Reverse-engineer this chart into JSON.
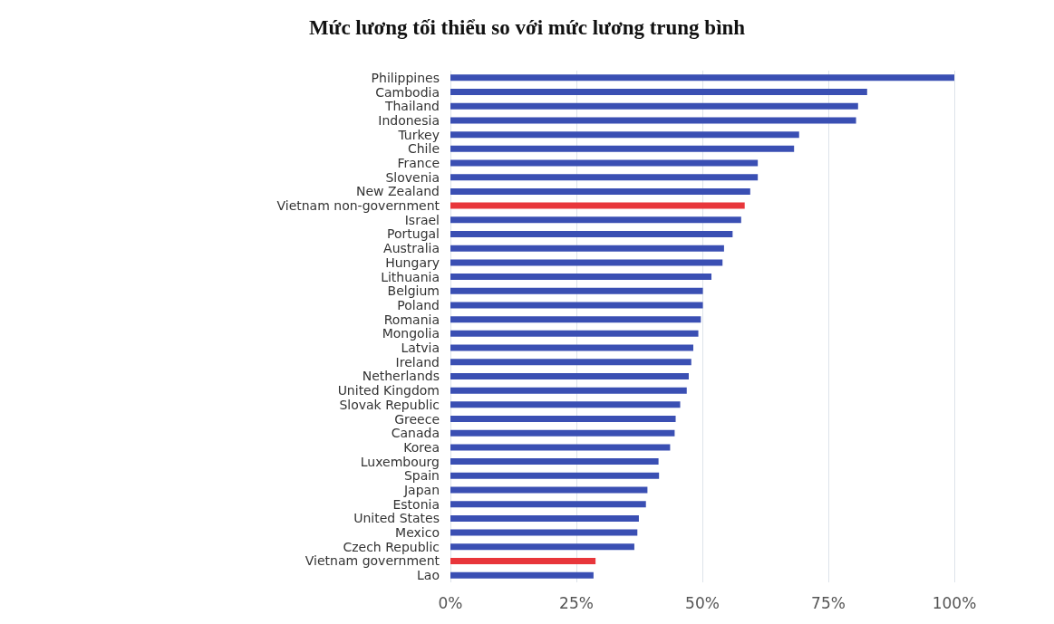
{
  "chart_data": {
    "type": "bar",
    "orientation": "horizontal",
    "title": "Mức lương tối thiểu so với mức lương trung bình",
    "categories": [
      "Philippines",
      "Cambodia",
      "Thailand",
      "Indonesia",
      "Turkey",
      "Chile",
      "France",
      "Slovenia",
      "New Zealand",
      "Vietnam non-government",
      "Israel",
      "Portugal",
      "Australia",
      "Hungary",
      "Lithuania",
      "Belgium",
      "Poland",
      "Romania",
      "Mongolia",
      "Latvia",
      "Ireland",
      "Netherlands",
      "United Kingdom",
      "Slovak Republic",
      "Greece",
      "Canada",
      "Korea",
      "Luxembourg",
      "Spain",
      "Japan",
      "Estonia",
      "United States",
      "Mexico",
      "Czech Republic",
      "Vietnam government",
      "Lao"
    ],
    "values": [
      100,
      82.7,
      80.9,
      80.5,
      69.2,
      68.2,
      61,
      61,
      59.5,
      58.4,
      57.7,
      56,
      54.3,
      54,
      51.8,
      50.1,
      50.1,
      49.7,
      49.2,
      48.2,
      47.8,
      47.3,
      46.9,
      45.6,
      44.7,
      44.5,
      43.6,
      41.3,
      41.4,
      39.1,
      38.8,
      37.4,
      37.1,
      36.5,
      28.8,
      28.4
    ],
    "colors": [
      "#3a4fb3",
      "#3a4fb3",
      "#3a4fb3",
      "#3a4fb3",
      "#3a4fb3",
      "#3a4fb3",
      "#3a4fb3",
      "#3a4fb3",
      "#3a4fb3",
      "#e8363b",
      "#3a4fb3",
      "#3a4fb3",
      "#3a4fb3",
      "#3a4fb3",
      "#3a4fb3",
      "#3a4fb3",
      "#3a4fb3",
      "#3a4fb3",
      "#3a4fb3",
      "#3a4fb3",
      "#3a4fb3",
      "#3a4fb3",
      "#3a4fb3",
      "#3a4fb3",
      "#3a4fb3",
      "#3a4fb3",
      "#3a4fb3",
      "#3a4fb3",
      "#3a4fb3",
      "#3a4fb3",
      "#3a4fb3",
      "#3a4fb3",
      "#3a4fb3",
      "#3a4fb3",
      "#e8363b",
      "#3a4fb3"
    ],
    "xlim": [
      0,
      100
    ],
    "xticks": [
      {
        "value": 0,
        "label": "0%"
      },
      {
        "value": 25,
        "label": "25%"
      },
      {
        "value": 50,
        "label": "50%"
      },
      {
        "value": 75,
        "label": "75%"
      },
      {
        "value": 100,
        "label": "100%"
      }
    ],
    "grid": "x"
  }
}
